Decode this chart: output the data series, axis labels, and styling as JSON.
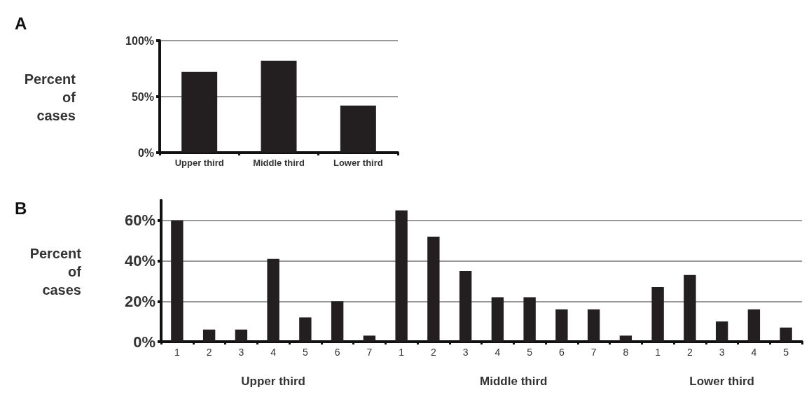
{
  "chart_data": [
    {
      "type": "bar",
      "title": "A",
      "ylabel": "Percent of cases",
      "categories": [
        "Upper third",
        "Middle third",
        "Lower third"
      ],
      "values": [
        72,
        82,
        42
      ],
      "color": "#231f20",
      "ylim": [
        0,
        100
      ],
      "yticks": [
        {
          "value": 0,
          "label": "0%"
        },
        {
          "value": 50,
          "label": "50%"
        },
        {
          "value": 100,
          "label": "100%"
        }
      ],
      "grid": "y"
    },
    {
      "type": "bar",
      "title": "B",
      "ylabel": "Percent of cases",
      "categories": [
        "1",
        "2",
        "3",
        "4",
        "5",
        "6",
        "7",
        "1",
        "2",
        "3",
        "4",
        "5",
        "6",
        "7",
        "8",
        "1",
        "2",
        "3",
        "4",
        "5"
      ],
      "values": [
        60,
        6,
        6,
        41,
        12,
        20,
        3,
        65,
        52,
        35,
        22,
        22,
        16,
        16,
        3,
        27,
        33,
        10,
        16,
        7
      ],
      "color": "#231f20",
      "ylim": [
        0,
        70
      ],
      "yticks": [
        {
          "value": 0,
          "label": "0%"
        },
        {
          "value": 20,
          "label": "20%"
        },
        {
          "value": 40,
          "label": "40%"
        },
        {
          "value": 60,
          "label": "60%"
        }
      ],
      "grid": "y",
      "annotations": [
        "Upper third",
        "Middle third",
        "Lower third"
      ]
    }
  ]
}
